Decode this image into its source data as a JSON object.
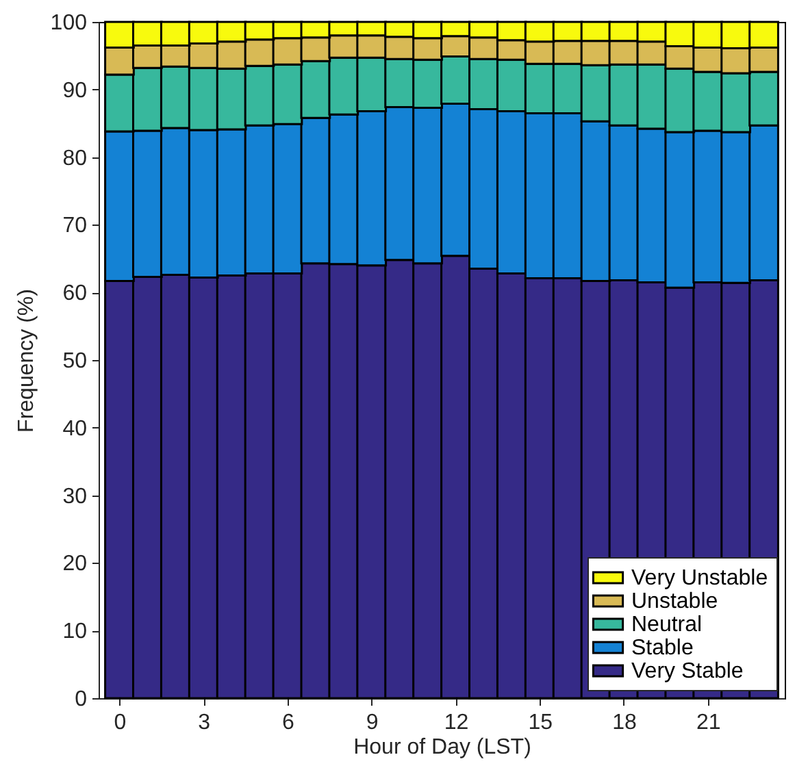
{
  "chart_data": {
    "type": "bar",
    "stacked": true,
    "xlabel": "Hour of Day (LST)",
    "ylabel": "Frequency (%)",
    "x": [
      0,
      1,
      2,
      3,
      4,
      5,
      6,
      7,
      8,
      9,
      10,
      11,
      12,
      13,
      14,
      15,
      16,
      17,
      18,
      19,
      20,
      21,
      22,
      23
    ],
    "xlim": [
      -0.5,
      23.5
    ],
    "xticks": [
      0,
      3,
      6,
      9,
      12,
      15,
      18,
      21
    ],
    "ylim": [
      0,
      100
    ],
    "yticks": [
      0,
      10,
      20,
      30,
      40,
      50,
      60,
      70,
      80,
      90,
      100
    ],
    "grid": false,
    "legend": "bottom right",
    "series": [
      {
        "name": "Very Stable",
        "color": "#352a87",
        "values": [
          61.7,
          62.3,
          62.6,
          62.2,
          62.5,
          62.8,
          62.8,
          64.3,
          64.2,
          64.0,
          64.8,
          64.3,
          65.4,
          63.5,
          62.8,
          62.1,
          62.1,
          61.7,
          61.8,
          61.5,
          60.7,
          61.5,
          61.4,
          61.8
        ]
      },
      {
        "name": "Stable",
        "color": "#1482d4",
        "values": [
          22.1,
          21.6,
          21.7,
          21.8,
          21.6,
          21.9,
          22.1,
          21.5,
          22.1,
          22.8,
          22.6,
          23.0,
          22.5,
          23.6,
          24.0,
          24.4,
          24.4,
          23.6,
          22.9,
          22.7,
          23.0,
          22.4,
          22.3,
          22.9
        ]
      },
      {
        "name": "Neutral",
        "color": "#37b89d",
        "values": [
          8.4,
          9.3,
          9.1,
          9.2,
          9.0,
          8.8,
          8.8,
          8.4,
          8.4,
          7.9,
          7.1,
          7.1,
          7.0,
          7.4,
          7.6,
          7.3,
          7.3,
          8.3,
          9.0,
          9.5,
          9.4,
          8.7,
          8.7,
          7.9
        ]
      },
      {
        "name": "Unstable",
        "color": "#d8ba55",
        "values": [
          4.0,
          3.3,
          3.1,
          3.6,
          4.0,
          3.9,
          3.9,
          3.5,
          3.3,
          3.3,
          3.3,
          3.2,
          3.0,
          3.2,
          2.9,
          3.3,
          3.4,
          3.6,
          3.5,
          3.4,
          3.3,
          3.6,
          3.7,
          3.6
        ]
      },
      {
        "name": "Very Unstable",
        "color": "#f8fa0d",
        "values": [
          3.8,
          3.5,
          3.5,
          3.2,
          2.9,
          2.6,
          2.4,
          2.3,
          2.0,
          2.0,
          2.2,
          2.4,
          2.1,
          2.3,
          2.7,
          2.9,
          2.8,
          2.8,
          2.8,
          2.9,
          3.6,
          3.8,
          3.9,
          3.8
        ]
      }
    ]
  }
}
